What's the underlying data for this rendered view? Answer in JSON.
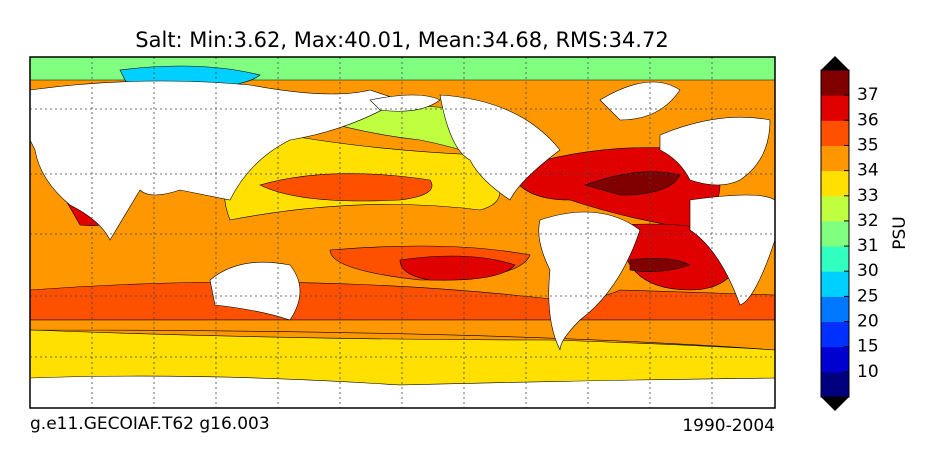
{
  "title": "Salt: Min:3.62, Max:40.01, Mean:34.68, RMS:34.72",
  "footer_left": "g.e11.GECOIAF.T62 g16.003",
  "footer_right": "1990-2004",
  "colorbar": {
    "label": "PSU",
    "ticks": [
      10,
      15,
      20,
      25,
      30,
      31,
      32,
      33,
      34,
      35,
      36,
      37
    ],
    "colors": [
      "#00007f",
      "#0000d0",
      "#0030ff",
      "#0078ff",
      "#00d0ff",
      "#30ffc0",
      "#80ff80",
      "#c0ff40",
      "#ffe000",
      "#ff9800",
      "#ff5000",
      "#e00000",
      "#800000"
    ]
  }
}
